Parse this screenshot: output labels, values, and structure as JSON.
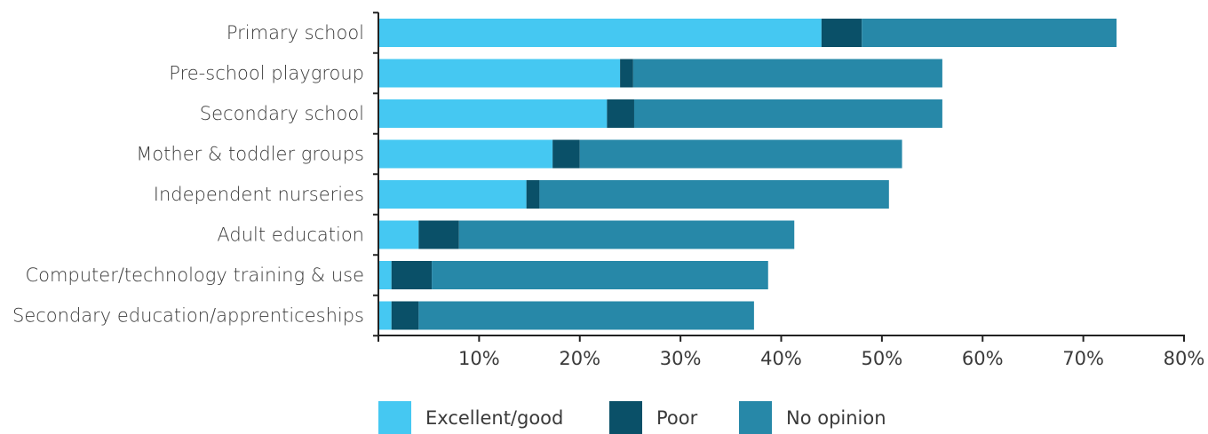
{
  "chart_data": {
    "type": "bar",
    "orientation": "horizontal",
    "stacked": true,
    "categories": [
      "Primary school",
      "Pre-school playgroup",
      "Secondary school",
      "Mother & toddler groups",
      "Independent nurseries",
      "Adult education",
      "Computer/technology training & use",
      "Secondary education/apprenticeships"
    ],
    "series": [
      {
        "name": "Excellent/good",
        "color": "#45c8f2",
        "values": [
          44,
          24,
          22.7,
          17.3,
          14.7,
          4,
          1.3,
          1.3
        ]
      },
      {
        "name": "Poor",
        "color": "#0a5068",
        "values": [
          4,
          1.3,
          2.7,
          2.7,
          1.3,
          4,
          4,
          2.7
        ]
      },
      {
        "name": "No opinion",
        "color": "#2788a8",
        "values": [
          25.3,
          30.7,
          30.6,
          32,
          34.7,
          33.3,
          33.4,
          33.3
        ]
      }
    ],
    "xlim": [
      0,
      80
    ],
    "xticks": [
      10,
      20,
      30,
      40,
      50,
      60,
      70,
      80
    ],
    "xtick_labels": [
      "10%",
      "20%",
      "30%",
      "40%",
      "50%",
      "60%",
      "70%",
      "80%"
    ],
    "legend_position": "bottom",
    "grid": false
  }
}
